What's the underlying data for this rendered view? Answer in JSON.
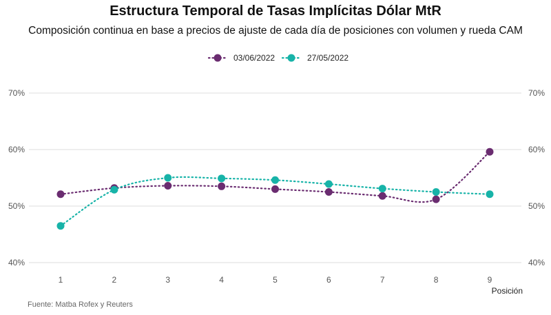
{
  "chart_data": {
    "type": "line",
    "title": "Estructura Temporal de Tasas Implícitas Dólar MtR",
    "subtitle": "Composición continua en base a precios de ajuste de cada día de posiciones con volumen y rueda CAM",
    "xlabel": "Posición",
    "ylabel": "",
    "x": [
      1,
      2,
      3,
      4,
      5,
      6,
      7,
      8,
      9
    ],
    "ylim": [
      40,
      70
    ],
    "yticks": [
      "40%",
      "50%",
      "60%",
      "70%"
    ],
    "ytick_values": [
      40,
      50,
      60,
      70
    ],
    "grid": true,
    "legend_position": "top-center",
    "series": [
      {
        "name": "03/06/2022",
        "color": "#6a2c70",
        "values": [
          52.1,
          53.2,
          53.6,
          53.5,
          53.0,
          52.5,
          51.8,
          51.2,
          59.6
        ]
      },
      {
        "name": "27/05/2022",
        "color": "#17b3a8",
        "values": [
          46.5,
          52.9,
          55.0,
          54.9,
          54.6,
          53.9,
          53.1,
          52.5,
          52.1
        ]
      }
    ],
    "caption": "Fuente: Matba Rofex y Reuters"
  }
}
